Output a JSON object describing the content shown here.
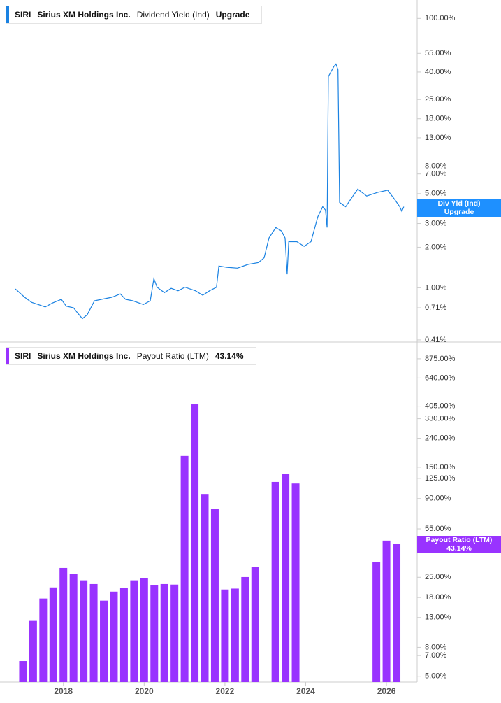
{
  "chart_data": [
    {
      "type": "line",
      "ticker": "SIRI",
      "company": "Sirius XM Holdings Inc.",
      "x": [
        2016.81,
        2017.04,
        2017.21,
        2017.38,
        2017.55,
        2017.73,
        2017.95,
        2018.07,
        2018.25,
        2018.37,
        2018.47,
        2018.59,
        2018.77,
        2018.94,
        2019.2,
        2019.41,
        2019.54,
        2019.72,
        2019.98,
        2020.15,
        2020.24,
        2020.32,
        2020.5,
        2020.67,
        2020.84,
        2021.01,
        2021.27,
        2021.45,
        2021.62,
        2021.79,
        2021.85,
        2022.05,
        2022.31,
        2022.57,
        2022.83,
        2022.97,
        2023.09,
        2023.26,
        2023.4,
        2023.49,
        2023.54,
        2023.58,
        2023.78,
        2023.96,
        2024.13,
        2024.3,
        2024.42,
        2024.49,
        2024.53,
        2024.56,
        2024.7,
        2024.75,
        2024.8,
        2024.84,
        2024.99,
        2025.17,
        2025.29,
        2025.51,
        2025.77,
        2026.03,
        2026.21,
        2026.33,
        2026.38,
        2026.43
      ],
      "series": [
        {
          "name": "Dividend Yield (Ind)",
          "short_name": "Div Yld (Ind)",
          "status": "Upgrade",
          "color": "#1a82e2",
          "values": [
            0.98,
            0.85,
            0.78,
            0.75,
            0.72,
            0.77,
            0.82,
            0.73,
            0.71,
            0.64,
            0.59,
            0.63,
            0.8,
            0.82,
            0.85,
            0.9,
            0.82,
            0.8,
            0.75,
            0.8,
            1.17,
            1.01,
            0.92,
            0.99,
            0.95,
            1.01,
            0.95,
            0.88,
            0.95,
            1.01,
            1.45,
            1.42,
            1.4,
            1.49,
            1.54,
            1.67,
            2.34,
            2.8,
            2.64,
            2.34,
            1.26,
            2.2,
            2.2,
            2.03,
            2.2,
            3.36,
            4.0,
            3.78,
            2.8,
            37,
            44,
            45.8,
            41.6,
            4.3,
            4.0,
            4.8,
            5.4,
            4.8,
            5.1,
            5.3,
            4.5,
            4.0,
            3.7,
            4.0
          ]
        }
      ],
      "xlim": [
        2016.43,
        2026.76
      ],
      "ylim": [
        0.4,
        137
      ],
      "log_scale": true,
      "yticks": [
        {
          "value": 100,
          "label": "100.00%"
        },
        {
          "value": 55,
          "label": "55.00%"
        },
        {
          "value": 40,
          "label": "40.00%"
        },
        {
          "value": 25,
          "label": "25.00%"
        },
        {
          "value": 18,
          "label": "18.00%"
        },
        {
          "value": 13,
          "label": "13.00%"
        },
        {
          "value": 8,
          "label": "8.00%"
        },
        {
          "value": 7,
          "label": "7.00%"
        },
        {
          "value": 5,
          "label": "5.00%"
        },
        {
          "value": 3,
          "label": "3.00%"
        },
        {
          "value": 2,
          "label": "2.00%"
        },
        {
          "value": 1,
          "label": "1.00%"
        },
        {
          "value": 0.71,
          "label": "0.71%"
        },
        {
          "value": 0.41,
          "label": "0.41%"
        }
      ]
    },
    {
      "type": "bar",
      "ticker": "SIRI",
      "company": "Sirius XM Holdings Inc.",
      "x": [
        2017.0,
        2017.25,
        2017.5,
        2017.75,
        2018.0,
        2018.25,
        2018.5,
        2018.75,
        2019.0,
        2019.25,
        2019.5,
        2019.75,
        2020.0,
        2020.25,
        2020.5,
        2020.75,
        2021.0,
        2021.25,
        2021.5,
        2021.75,
        2022.0,
        2022.25,
        2022.5,
        2022.75,
        2023.25,
        2023.5,
        2023.75,
        2025.75,
        2026.0,
        2026.25
      ],
      "series": [
        {
          "name": "Payout Ratio (LTM)",
          "last_label": "43.14%",
          "color": "#9933ff",
          "values": [
            6.4,
            12.3,
            17.7,
            21.2,
            29.1,
            26.3,
            23.8,
            22.4,
            17.1,
            19.8,
            21.0,
            23.8,
            24.6,
            21.9,
            22.4,
            22.2,
            180,
            417,
            97,
            76,
            20.5,
            20.8,
            25.1,
            29.5,
            118,
            135,
            115,
            31.9,
            45.4,
            43.14
          ]
        }
      ],
      "xlim": [
        2016.43,
        2026.76
      ],
      "xticks": [
        2018,
        2020,
        2022,
        2024,
        2026
      ],
      "ylim": [
        4.55,
        1110
      ],
      "log_scale": true,
      "yticks": [
        {
          "value": 875,
          "label": "875.00%"
        },
        {
          "value": 640,
          "label": "640.00%"
        },
        {
          "value": 405,
          "label": "405.00%"
        },
        {
          "value": 330,
          "label": "330.00%"
        },
        {
          "value": 240,
          "label": "240.00%"
        },
        {
          "value": 150,
          "label": "150.00%"
        },
        {
          "value": 125,
          "label": "125.00%"
        },
        {
          "value": 90,
          "label": "90.00%"
        },
        {
          "value": 55,
          "label": "55.00%"
        },
        {
          "value": 25,
          "label": "25.00%"
        },
        {
          "value": 18,
          "label": "18.00%"
        },
        {
          "value": 13,
          "label": "13.00%"
        },
        {
          "value": 8,
          "label": "8.00%"
        },
        {
          "value": 7,
          "label": "7.00%"
        },
        {
          "value": 5,
          "label": "5.00%"
        }
      ]
    }
  ]
}
